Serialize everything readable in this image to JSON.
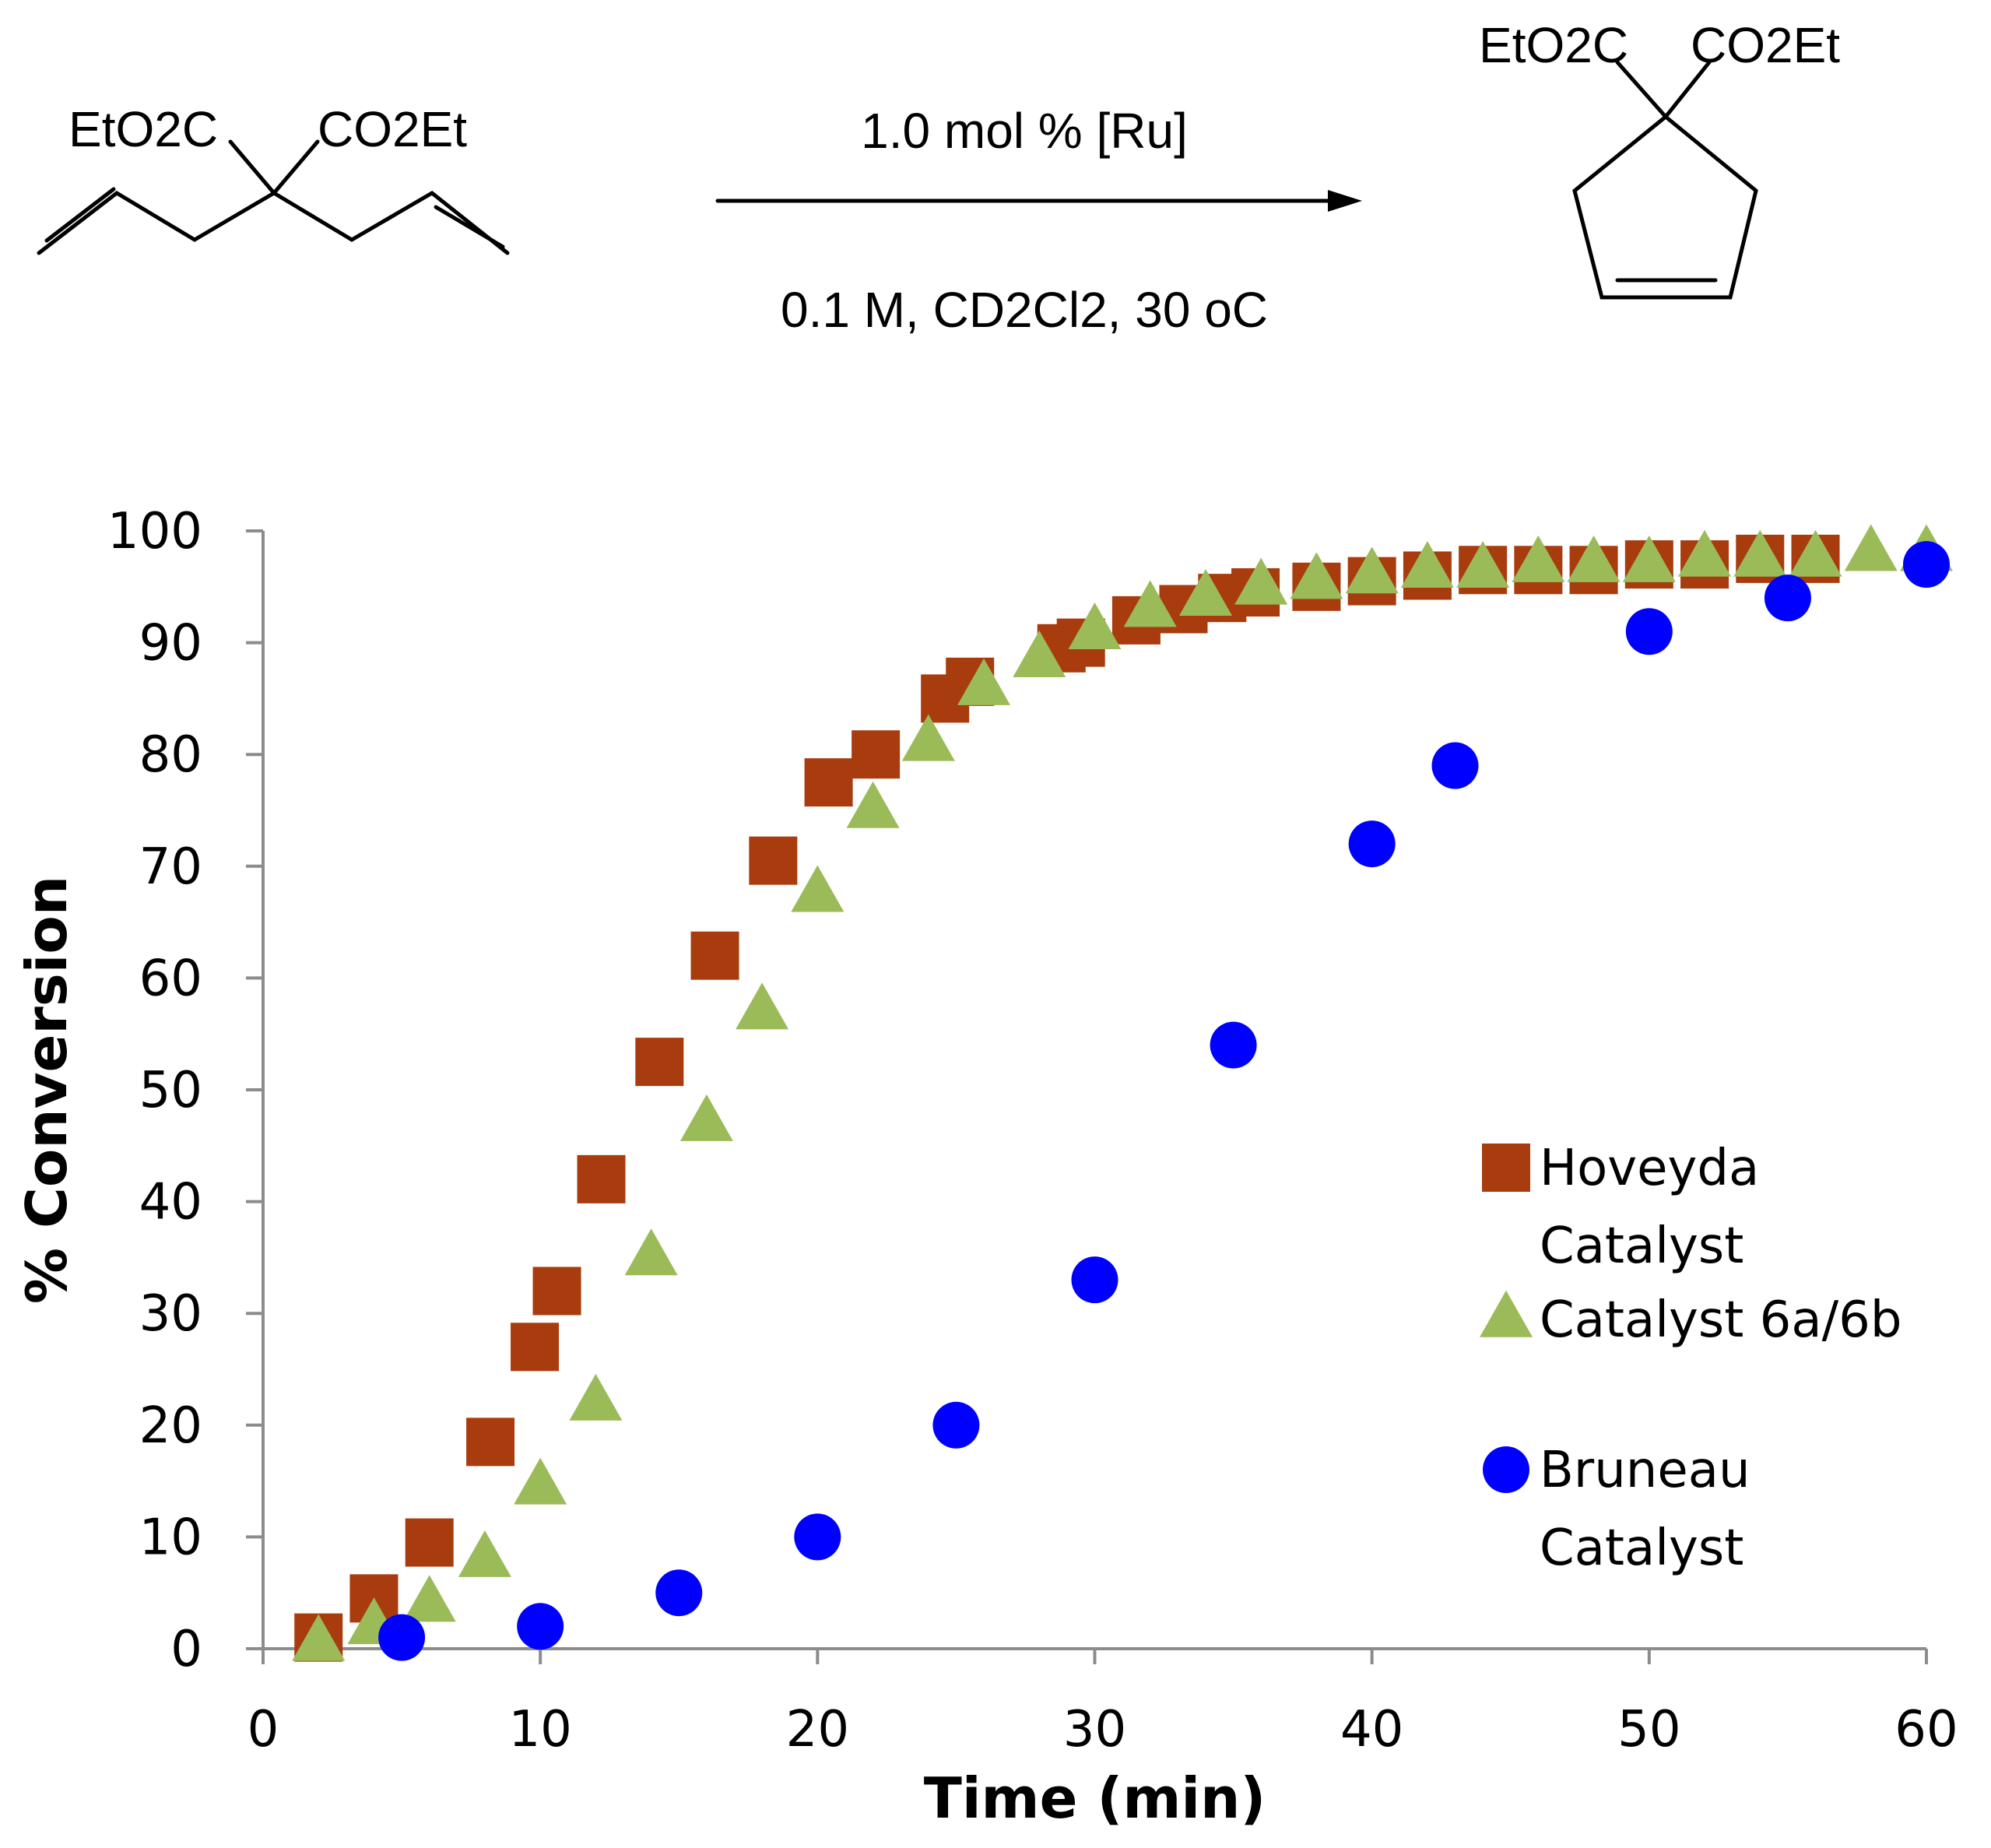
{
  "scheme": {
    "reactant_left_group": "EtO2C",
    "reactant_right_group": "CO2Et",
    "product_left_group": "EtO2C",
    "product_right_group": "CO2Et",
    "condition_above": "1.0 mol % [Ru]",
    "condition_below": "0.1 M, CD2Cl2, 30 oC"
  },
  "chart_data": {
    "type": "scatter",
    "title": "",
    "xlabel": "Time (min)",
    "ylabel": "% Conversion",
    "xlim": [
      0,
      60
    ],
    "ylim": [
      0,
      100
    ],
    "xticks": [
      0,
      10,
      20,
      30,
      40,
      50,
      60
    ],
    "yticks": [
      0,
      10,
      20,
      30,
      40,
      50,
      60,
      70,
      80,
      90,
      100
    ],
    "grid": false,
    "legend_position": "right",
    "series": [
      {
        "name": "Hoveyda Catalyst",
        "legend_line1": "Hoveyda",
        "legend_line2": "Catalyst",
        "marker": "square",
        "color": "#A83C0E",
        "points": [
          [
            2,
            1
          ],
          [
            4,
            4.5
          ],
          [
            6,
            9.5
          ],
          [
            8.2,
            18.5
          ],
          [
            9.8,
            27
          ],
          [
            10.6,
            32
          ],
          [
            12.2,
            42
          ],
          [
            14.3,
            52.5
          ],
          [
            16.3,
            62
          ],
          [
            18.4,
            70.5
          ],
          [
            20.4,
            77.5
          ],
          [
            22.1,
            80
          ],
          [
            24.6,
            85
          ],
          [
            25.5,
            86.5
          ],
          [
            28.8,
            89.5
          ],
          [
            29.5,
            90
          ],
          [
            31.5,
            92
          ],
          [
            33.2,
            93
          ],
          [
            34.6,
            94
          ],
          [
            35.8,
            94.5
          ],
          [
            38,
            95
          ],
          [
            40,
            95.5
          ],
          [
            42,
            96
          ],
          [
            44,
            96.5
          ],
          [
            46,
            96.5
          ],
          [
            48,
            96.5
          ],
          [
            50,
            97
          ],
          [
            52,
            97
          ],
          [
            54,
            97.5
          ],
          [
            56,
            97.5
          ]
        ]
      },
      {
        "name": "Catalyst 6a/6b",
        "legend_line1": "Catalyst 6a/6b",
        "legend_line2": "",
        "marker": "triangle",
        "color": "#9BBB59",
        "points": [
          [
            2,
            0.5
          ],
          [
            4,
            2
          ],
          [
            6,
            4
          ],
          [
            8,
            8
          ],
          [
            10,
            14.5
          ],
          [
            12,
            22
          ],
          [
            14,
            35
          ],
          [
            16,
            47
          ],
          [
            18,
            57
          ],
          [
            20,
            67.5
          ],
          [
            22,
            75
          ],
          [
            24,
            81
          ],
          [
            26,
            86
          ],
          [
            28,
            88.5
          ],
          [
            30,
            91
          ],
          [
            32,
            93
          ],
          [
            34,
            94
          ],
          [
            36,
            95
          ],
          [
            38,
            95.5
          ],
          [
            40,
            96
          ],
          [
            42,
            96.5
          ],
          [
            44,
            96.5
          ],
          [
            46,
            97
          ],
          [
            48,
            97
          ],
          [
            50,
            97
          ],
          [
            52,
            97.5
          ],
          [
            54,
            97.5
          ],
          [
            56,
            97.5
          ],
          [
            58,
            98
          ],
          [
            60,
            98
          ]
        ]
      },
      {
        "name": "Bruneau Catalyst",
        "legend_line1": "Bruneau",
        "legend_line2": "Catalyst",
        "marker": "circle",
        "color": "#0000FF",
        "points": [
          [
            5,
            1
          ],
          [
            10,
            2
          ],
          [
            15,
            5
          ],
          [
            20,
            10
          ],
          [
            25,
            20
          ],
          [
            30,
            33
          ],
          [
            35,
            54
          ],
          [
            40,
            72
          ],
          [
            43,
            79
          ],
          [
            50,
            91
          ],
          [
            55,
            94
          ],
          [
            60,
            97
          ]
        ]
      }
    ]
  }
}
